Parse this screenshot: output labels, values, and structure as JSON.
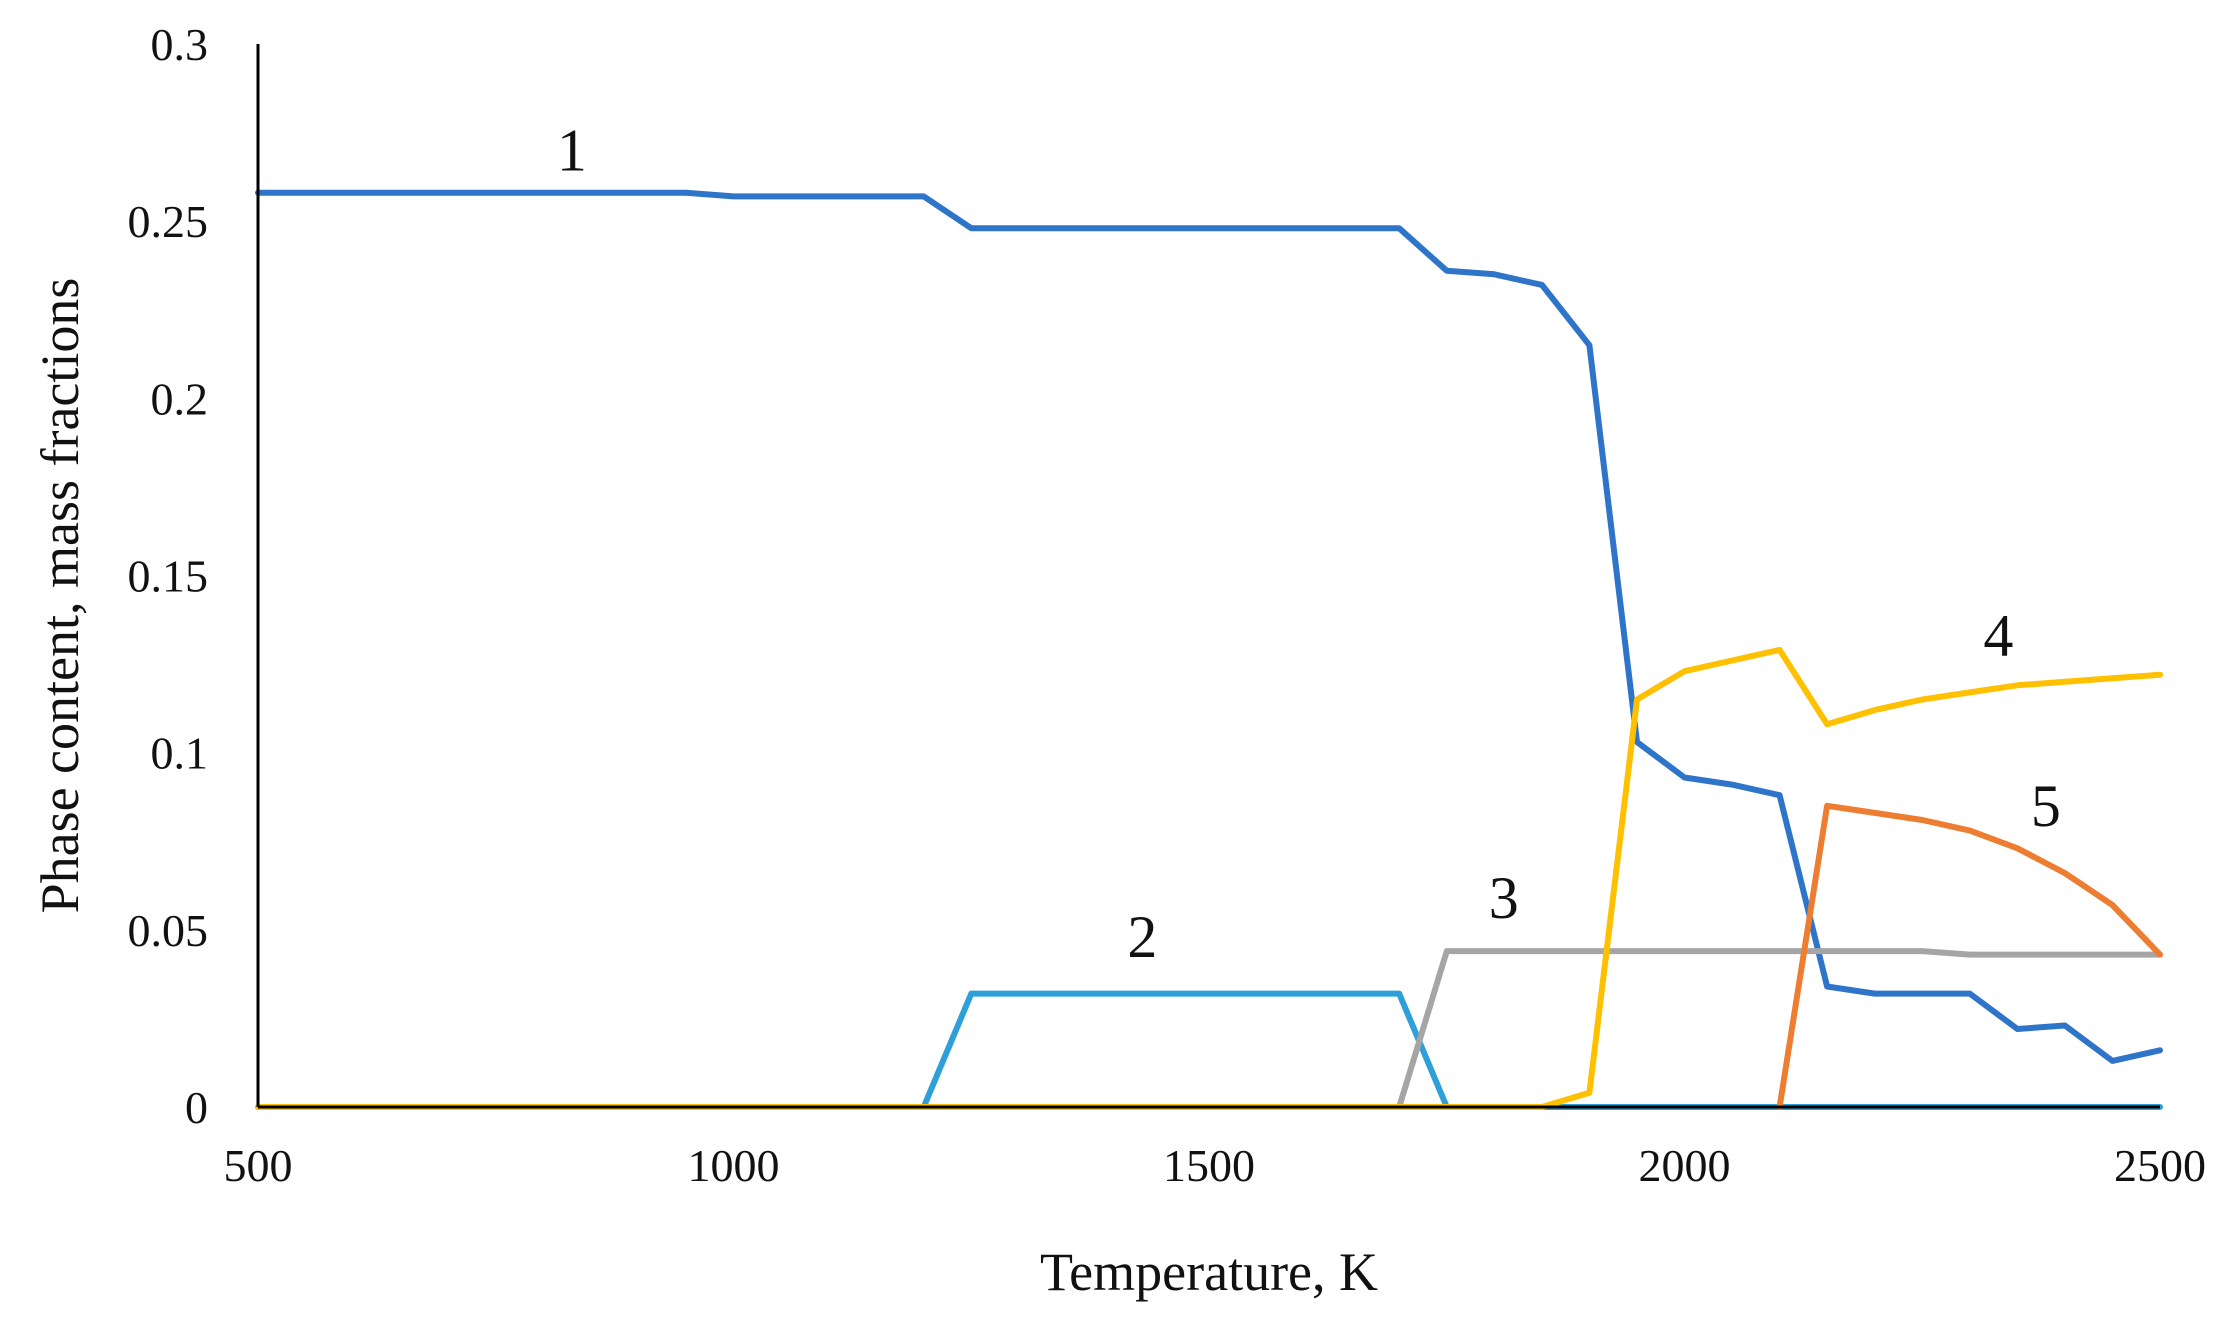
{
  "chart_data": {
    "type": "line",
    "xlabel": "Temperature, K",
    "ylabel": "Phase content, mass fractions",
    "xlim": [
      500,
      2500
    ],
    "ylim": [
      0,
      0.3
    ],
    "x_ticks": [
      "500",
      "1000",
      "1500",
      "2000",
      "2500"
    ],
    "y_ticks": [
      "0",
      "0.05",
      "0.1",
      "0.15",
      "0.2",
      "0.25",
      "0.3"
    ],
    "grid": false,
    "legend": "none",
    "series": [
      {
        "name": "1",
        "color": "#2e74c8",
        "label_at": [
          830,
          0.27
        ],
        "points": [
          [
            500,
            0.258
          ],
          [
            600,
            0.258
          ],
          [
            700,
            0.258
          ],
          [
            800,
            0.258
          ],
          [
            900,
            0.258
          ],
          [
            950,
            0.258
          ],
          [
            1000,
            0.257
          ],
          [
            1050,
            0.257
          ],
          [
            1100,
            0.257
          ],
          [
            1150,
            0.257
          ],
          [
            1200,
            0.257
          ],
          [
            1250,
            0.248
          ],
          [
            1300,
            0.248
          ],
          [
            1400,
            0.248
          ],
          [
            1500,
            0.248
          ],
          [
            1600,
            0.248
          ],
          [
            1700,
            0.248
          ],
          [
            1750,
            0.236
          ],
          [
            1800,
            0.235
          ],
          [
            1850,
            0.232
          ],
          [
            1900,
            0.215
          ],
          [
            1950,
            0.103
          ],
          [
            2000,
            0.093
          ],
          [
            2050,
            0.091
          ],
          [
            2100,
            0.088
          ],
          [
            2150,
            0.034
          ],
          [
            2200,
            0.032
          ],
          [
            2250,
            0.032
          ],
          [
            2300,
            0.032
          ],
          [
            2350,
            0.022
          ],
          [
            2400,
            0.023
          ],
          [
            2450,
            0.013
          ],
          [
            2500,
            0.016
          ]
        ]
      },
      {
        "name": "2",
        "color": "#2e9fd8",
        "label_at": [
          1430,
          0.048
        ],
        "points": [
          [
            500,
            0
          ],
          [
            1200,
            0
          ],
          [
            1250,
            0.032
          ],
          [
            1300,
            0.032
          ],
          [
            1400,
            0.032
          ],
          [
            1500,
            0.032
          ],
          [
            1600,
            0.032
          ],
          [
            1700,
            0.032
          ],
          [
            1750,
            0
          ],
          [
            2500,
            0
          ]
        ]
      },
      {
        "name": "3",
        "color": "#a5a5a5",
        "label_at": [
          1810,
          0.059
        ],
        "points": [
          [
            500,
            0
          ],
          [
            1700,
            0
          ],
          [
            1750,
            0.044
          ],
          [
            1800,
            0.044
          ],
          [
            1900,
            0.044
          ],
          [
            2000,
            0.044
          ],
          [
            2100,
            0.044
          ],
          [
            2200,
            0.044
          ],
          [
            2250,
            0.044
          ],
          [
            2300,
            0.043
          ],
          [
            2400,
            0.043
          ],
          [
            2500,
            0.043
          ]
        ]
      },
      {
        "name": "4",
        "color": "#ffc000",
        "label_at": [
          2330,
          0.133
        ],
        "points": [
          [
            500,
            0
          ],
          [
            1850,
            0
          ],
          [
            1900,
            0.004
          ],
          [
            1950,
            0.115
          ],
          [
            2000,
            0.123
          ],
          [
            2050,
            0.126
          ],
          [
            2100,
            0.129
          ],
          [
            2150,
            0.108
          ],
          [
            2200,
            0.112
          ],
          [
            2250,
            0.115
          ],
          [
            2300,
            0.117
          ],
          [
            2350,
            0.119
          ],
          [
            2400,
            0.12
          ],
          [
            2450,
            0.121
          ],
          [
            2500,
            0.122
          ]
        ]
      },
      {
        "name": "5",
        "color": "#ed7d31",
        "label_at": [
          2380,
          0.085
        ],
        "points": [
          [
            2100,
            0
          ],
          [
            2150,
            0.085
          ],
          [
            2200,
            0.083
          ],
          [
            2250,
            0.081
          ],
          [
            2300,
            0.078
          ],
          [
            2350,
            0.073
          ],
          [
            2400,
            0.066
          ],
          [
            2450,
            0.057
          ],
          [
            2500,
            0.043
          ]
        ]
      }
    ]
  }
}
